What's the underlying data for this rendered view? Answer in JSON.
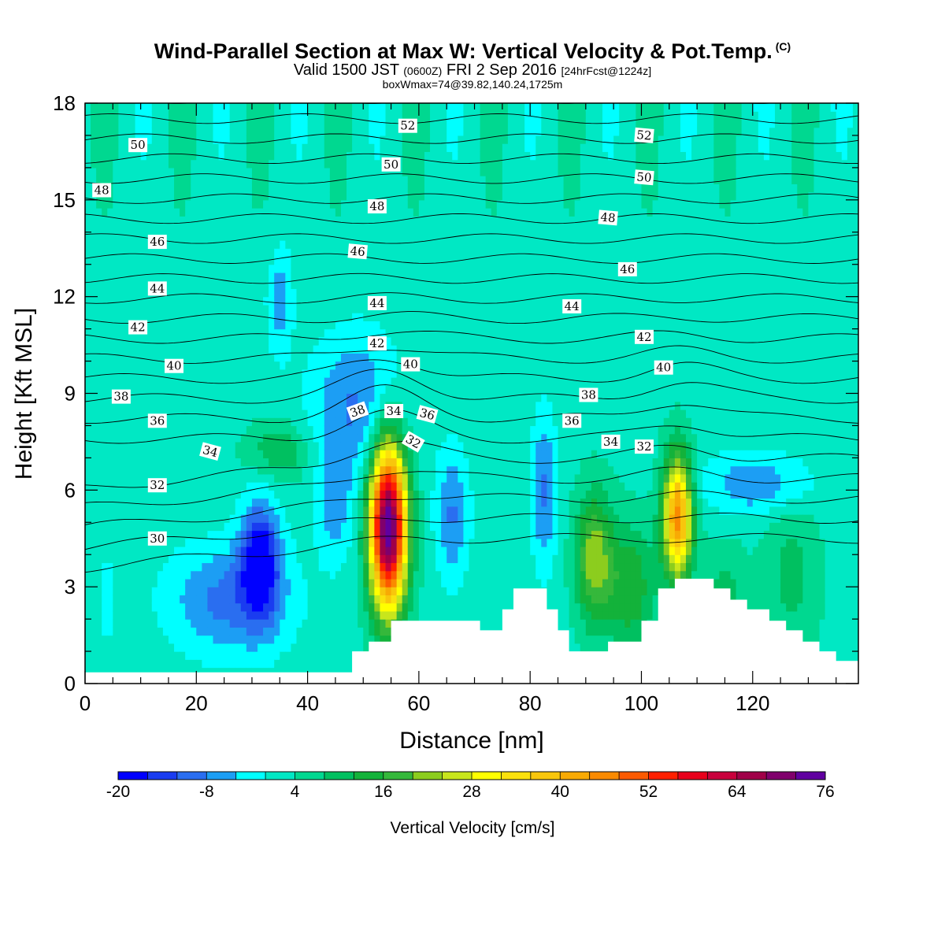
{
  "header": {
    "title": "Wind-Parallel Section at Max W: Vertical Velocity & Pot.Temp.",
    "copyright_mark": "(C)",
    "subtitle_main": "Valid 1500 JST",
    "subtitle_utc": "(0600Z)",
    "subtitle_date": "FRI 2 Sep 2016",
    "subtitle_run": "[24hrFcst@1224z]",
    "box_line": "boxWmax=74@39.82,140.24,1725m"
  },
  "chart_data": {
    "type": "heatmap",
    "xlabel": "Distance [nm]",
    "ylabel": "Height [Kft MSL]",
    "xlim": [
      0,
      139
    ],
    "ylim": [
      0,
      18
    ],
    "x_ticks": [
      "0",
      "20",
      "40",
      "60",
      "80",
      "100",
      "120"
    ],
    "y_ticks": [
      "0",
      "3",
      "6",
      "9",
      "12",
      "15",
      "18"
    ],
    "colorbar": {
      "title": "Vertical Velocity [cm/s]",
      "tick_labels": [
        "-20",
        "-8",
        "4",
        "16",
        "28",
        "40",
        "52",
        "64",
        "76"
      ],
      "levels_min": -20,
      "levels_step": 4,
      "colors": [
        "#0000ff",
        "#1a3cf0",
        "#2a6ef0",
        "#1c9ef4",
        "#00ffff",
        "#00e8c4",
        "#00d890",
        "#00c060",
        "#13b23a",
        "#35b83b",
        "#8ccd1e",
        "#c8e61c",
        "#ffff00",
        "#fbe10c",
        "#f8c60c",
        "#f8aa04",
        "#fa8a00",
        "#fc5a00",
        "#ff2000",
        "#e8001c",
        "#c8003c",
        "#a00048",
        "#80006c",
        "#6000a0"
      ]
    },
    "theta_contours": {
      "levels": [
        30,
        31,
        32,
        33,
        34,
        35,
        36,
        37,
        38,
        39,
        40,
        41,
        42,
        43,
        44,
        45,
        46,
        47,
        48,
        49,
        50,
        51,
        52
      ],
      "labels": [
        {
          "text": "52",
          "x": 58,
          "y": 17.3,
          "angle": 0
        },
        {
          "text": "52",
          "x": 100.5,
          "y": 17.0,
          "angle": 5
        },
        {
          "text": "50",
          "x": 9.5,
          "y": 16.7,
          "angle": 0
        },
        {
          "text": "50",
          "x": 55,
          "y": 16.1,
          "angle": 0
        },
        {
          "text": "50",
          "x": 100.5,
          "y": 15.7,
          "angle": 5
        },
        {
          "text": "48",
          "x": 3,
          "y": 15.3,
          "angle": 0
        },
        {
          "text": "48",
          "x": 52.5,
          "y": 14.8,
          "angle": 0
        },
        {
          "text": "48",
          "x": 94,
          "y": 14.45,
          "angle": 5
        },
        {
          "text": "46",
          "x": 13,
          "y": 13.7,
          "angle": 0
        },
        {
          "text": "46",
          "x": 49,
          "y": 13.4,
          "angle": 5
        },
        {
          "text": "46",
          "x": 97.5,
          "y": 12.85,
          "angle": 0
        },
        {
          "text": "44",
          "x": 13,
          "y": 12.25,
          "angle": 0
        },
        {
          "text": "44",
          "x": 52.5,
          "y": 11.8,
          "angle": 0
        },
        {
          "text": "44",
          "x": 87.5,
          "y": 11.7,
          "angle": 0
        },
        {
          "text": "42",
          "x": 9.5,
          "y": 11.05,
          "angle": 0
        },
        {
          "text": "42",
          "x": 52.5,
          "y": 10.55,
          "angle": 0
        },
        {
          "text": "42",
          "x": 100.5,
          "y": 10.75,
          "angle": 0
        },
        {
          "text": "40",
          "x": 16,
          "y": 9.85,
          "angle": 0
        },
        {
          "text": "40",
          "x": 58.5,
          "y": 9.9,
          "angle": 0
        },
        {
          "text": "40",
          "x": 104,
          "y": 9.8,
          "angle": 0
        },
        {
          "text": "38",
          "x": 6.5,
          "y": 8.9,
          "angle": 0
        },
        {
          "text": "38",
          "x": 49,
          "y": 8.45,
          "angle": -20
        },
        {
          "text": "38",
          "x": 90.5,
          "y": 8.95,
          "angle": 0
        },
        {
          "text": "36",
          "x": 13,
          "y": 8.15,
          "angle": 0
        },
        {
          "text": "36",
          "x": 61.5,
          "y": 8.35,
          "angle": 15
        },
        {
          "text": "36",
          "x": 87.5,
          "y": 8.15,
          "angle": 0
        },
        {
          "text": "34",
          "x": 55.5,
          "y": 8.45,
          "angle": 0
        },
        {
          "text": "34",
          "x": 22.5,
          "y": 7.2,
          "angle": 15
        },
        {
          "text": "34",
          "x": 94.5,
          "y": 7.5,
          "angle": 0
        },
        {
          "text": "32",
          "x": 59,
          "y": 7.5,
          "angle": 30
        },
        {
          "text": "32",
          "x": 100.5,
          "y": 7.35,
          "angle": 0
        },
        {
          "text": "32",
          "x": 13,
          "y": 6.15,
          "angle": 0
        },
        {
          "text": "30",
          "x": 13,
          "y": 4.5,
          "angle": 0
        }
      ]
    },
    "terrain_profile": [
      [
        0,
        0.35
      ],
      [
        45,
        0.35
      ],
      [
        48,
        0.35
      ],
      [
        48,
        1.0
      ],
      [
        51,
        1.0
      ],
      [
        51,
        1.3
      ],
      [
        55,
        1.3
      ],
      [
        55,
        1.95
      ],
      [
        71,
        1.95
      ],
      [
        71,
        1.65
      ],
      [
        75,
        1.65
      ],
      [
        75,
        2.3
      ],
      [
        77,
        2.3
      ],
      [
        77,
        2.95
      ],
      [
        83,
        2.95
      ],
      [
        83,
        2.3
      ],
      [
        85,
        2.3
      ],
      [
        85,
        1.65
      ],
      [
        87,
        1.65
      ],
      [
        87,
        1.0
      ],
      [
        90,
        1.0
      ],
      [
        90,
        1.0
      ],
      [
        94,
        1.0
      ],
      [
        94,
        1.3
      ],
      [
        97,
        1.3
      ],
      [
        97,
        1.3
      ],
      [
        100,
        1.3
      ],
      [
        100,
        1.95
      ],
      [
        103,
        1.95
      ],
      [
        103,
        2.95
      ],
      [
        106,
        2.95
      ],
      [
        106,
        3.25
      ],
      [
        113,
        3.25
      ],
      [
        113,
        2.95
      ],
      [
        116,
        2.95
      ],
      [
        116,
        2.6
      ],
      [
        119,
        2.6
      ],
      [
        119,
        2.3
      ],
      [
        123,
        2.3
      ],
      [
        123,
        1.95
      ],
      [
        126,
        1.95
      ],
      [
        126,
        1.65
      ],
      [
        129,
        1.65
      ],
      [
        129,
        1.3
      ],
      [
        132,
        1.3
      ],
      [
        132,
        1.0
      ],
      [
        135,
        1.0
      ],
      [
        135,
        0.7
      ],
      [
        139,
        0.7
      ]
    ]
  }
}
